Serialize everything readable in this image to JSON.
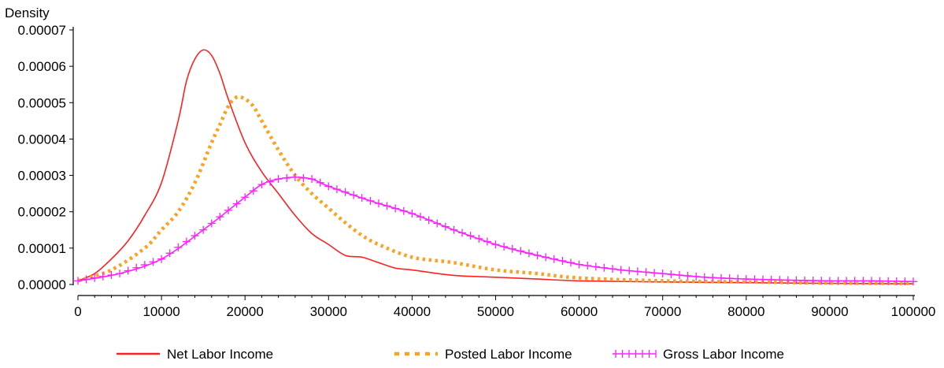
{
  "chart_data": {
    "type": "line",
    "ylabel": "Density",
    "xlabel": "",
    "xlim": [
      0,
      100000
    ],
    "ylim": [
      0,
      7e-05
    ],
    "x_ticks": [
      0,
      10000,
      20000,
      30000,
      40000,
      50000,
      60000,
      70000,
      80000,
      90000,
      100000
    ],
    "x_tick_labels": [
      "0",
      "10000",
      "20000",
      "30000",
      "40000",
      "50000",
      "60000",
      "70000",
      "80000",
      "90000",
      "100000"
    ],
    "y_ticks": [
      0,
      1e-05,
      2e-05,
      3e-05,
      4e-05,
      5e-05,
      6e-05,
      7e-05
    ],
    "y_tick_labels": [
      "0.00000",
      "0.00001",
      "0.00002",
      "0.00003",
      "0.00004",
      "0.00005",
      "0.00006",
      "0.00007"
    ],
    "grid": false,
    "legend_position": "bottom",
    "series": [
      {
        "name": "Net Labor Income",
        "color": "#ff2020",
        "style": "solid",
        "x": [
          0,
          2000,
          4000,
          6000,
          8000,
          10000,
          12000,
          13000,
          14000,
          15000,
          16000,
          17000,
          18000,
          20000,
          22000,
          24000,
          26000,
          28000,
          30000,
          32000,
          34000,
          36000,
          38000,
          40000,
          45000,
          50000,
          55000,
          60000,
          70000,
          80000,
          90000,
          100000
        ],
        "y": [
          1e-06,
          3e-06,
          7e-06,
          1.2e-05,
          1.9e-05,
          2.8e-05,
          4.5e-05,
          5.6e-05,
          6.2e-05,
          6.45e-05,
          6.3e-05,
          5.8e-05,
          5.1e-05,
          3.9e-05,
          3.1e-05,
          2.5e-05,
          1.9e-05,
          1.4e-05,
          1.1e-05,
          8e-06,
          7.5e-06,
          6e-06,
          4.5e-06,
          4e-06,
          2.5e-06,
          2e-06,
          1.5e-06,
          1e-06,
          7e-07,
          5e-07,
          3e-07,
          2e-07
        ]
      },
      {
        "name": "Posted Labor Income",
        "color": "#ffa020",
        "style": "dotted",
        "x": [
          0,
          4000,
          8000,
          10000,
          12000,
          14000,
          16000,
          17000,
          18000,
          19000,
          20000,
          21000,
          22000,
          24000,
          26000,
          28000,
          30000,
          32000,
          34000,
          36000,
          40000,
          45000,
          50000,
          55000,
          60000,
          70000,
          80000,
          90000,
          100000
        ],
        "y": [
          1e-06,
          4e-06,
          1e-05,
          1.5e-05,
          2e-05,
          2.8e-05,
          3.9e-05,
          4.4e-05,
          4.9e-05,
          5.15e-05,
          5.1e-05,
          4.9e-05,
          4.5e-05,
          3.7e-05,
          3e-05,
          2.5e-05,
          2.1e-05,
          1.7e-05,
          1.35e-05,
          1.1e-05,
          7.5e-06,
          6e-06,
          4e-06,
          3e-06,
          1.8e-06,
          1e-06,
          7e-07,
          4e-07,
          3e-07
        ]
      },
      {
        "name": "Gross Labor Income",
        "color": "#ff20ff",
        "style": "solid-plus-markers",
        "x": [
          0,
          5000,
          10000,
          15000,
          20000,
          22000,
          24000,
          26000,
          28000,
          30000,
          35000,
          40000,
          45000,
          50000,
          55000,
          60000,
          65000,
          70000,
          75000,
          80000,
          85000,
          90000,
          95000,
          100000
        ],
        "y": [
          1e-06,
          3e-06,
          7e-06,
          1.5e-05,
          2.4e-05,
          2.75e-05,
          2.9e-05,
          2.95e-05,
          2.9e-05,
          2.7e-05,
          2.3e-05,
          1.95e-05,
          1.5e-05,
          1.1e-05,
          8e-06,
          5.5e-06,
          4e-06,
          3e-06,
          2e-06,
          1.5e-06,
          1.2e-06,
          1e-06,
          1e-06,
          8e-07
        ]
      }
    ]
  }
}
